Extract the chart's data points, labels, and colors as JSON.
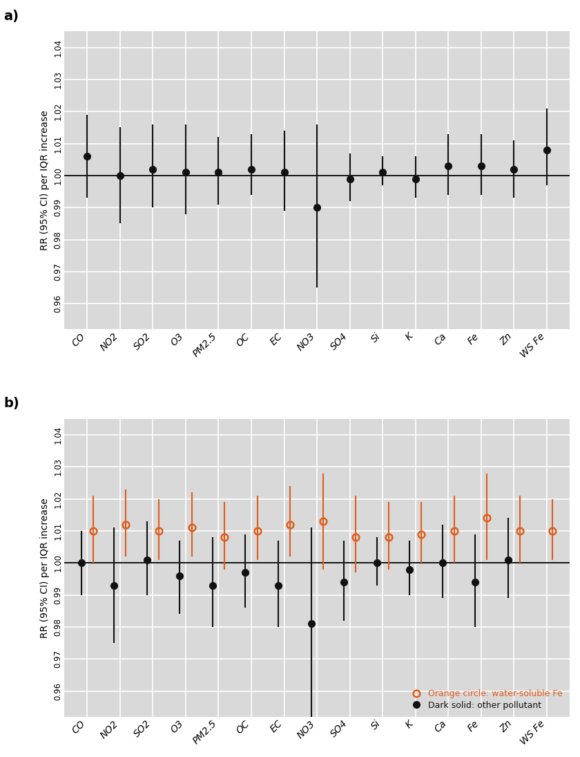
{
  "categories": [
    "CO",
    "NO2",
    "SO2",
    "O3",
    "PM2.5",
    "OC",
    "EC",
    "NO3",
    "SO4",
    "Si",
    "K",
    "Ca",
    "Fe",
    "Zn",
    "WS Fe"
  ],
  "panel_a": {
    "centers": [
      1.006,
      1.0,
      1.002,
      1.001,
      1.001,
      1.002,
      1.001,
      0.99,
      0.999,
      1.001,
      0.999,
      1.003,
      1.003,
      1.002,
      1.008
    ],
    "ci_low": [
      0.993,
      0.985,
      0.99,
      0.988,
      0.991,
      0.994,
      0.989,
      0.965,
      0.992,
      0.997,
      0.993,
      0.994,
      0.994,
      0.993,
      0.997
    ],
    "ci_high": [
      1.019,
      1.015,
      1.016,
      1.016,
      1.012,
      1.013,
      1.014,
      1.016,
      1.007,
      1.006,
      1.006,
      1.013,
      1.013,
      1.011,
      1.021
    ]
  },
  "panel_b": {
    "centers_black": [
      1.0,
      0.993,
      1.001,
      0.996,
      0.993,
      0.997,
      0.993,
      0.981,
      0.994,
      1.0,
      0.998,
      1.0,
      0.994,
      1.001,
      null
    ],
    "ci_low_black": [
      0.99,
      0.975,
      0.99,
      0.984,
      0.98,
      0.986,
      0.98,
      0.951,
      0.982,
      0.993,
      0.99,
      0.989,
      0.98,
      0.989,
      null
    ],
    "ci_high_black": [
      1.01,
      1.011,
      1.013,
      1.007,
      1.008,
      1.009,
      1.007,
      1.011,
      1.007,
      1.008,
      1.007,
      1.012,
      1.009,
      1.014,
      null
    ],
    "centers_orange": [
      1.01,
      1.012,
      1.01,
      1.011,
      1.008,
      1.01,
      1.012,
      1.013,
      1.008,
      1.008,
      1.009,
      1.01,
      1.014,
      1.01,
      1.01
    ],
    "ci_low_orange": [
      1.0,
      1.002,
      1.001,
      1.002,
      0.998,
      1.001,
      1.002,
      0.998,
      0.997,
      0.998,
      1.0,
      1.0,
      1.001,
      1.0,
      1.001
    ],
    "ci_high_orange": [
      1.021,
      1.023,
      1.02,
      1.022,
      1.019,
      1.021,
      1.024,
      1.028,
      1.021,
      1.019,
      1.019,
      1.021,
      1.028,
      1.021,
      1.02
    ]
  },
  "ylim": [
    0.952,
    1.045
  ],
  "yticks": [
    0.96,
    0.97,
    0.98,
    0.99,
    1.0,
    1.01,
    1.02,
    1.03,
    1.04
  ],
  "ytick_labels": [
    "0.96",
    "0.97",
    "0.98",
    "0.99",
    "1.00",
    "1.01",
    "1.02",
    "1.03",
    "1.04"
  ],
  "ylabel": "RR (95% CI) per IQR increase",
  "bg_color": "#d9d9d9",
  "grid_color": "#ffffff",
  "orange_color": "#e05c1a",
  "black_color": "#111111",
  "legend_orange": "Orange circle: water-soluble Fe",
  "legend_black": "Dark solid: other pollutant",
  "title_a": "a)",
  "title_b": "b)"
}
